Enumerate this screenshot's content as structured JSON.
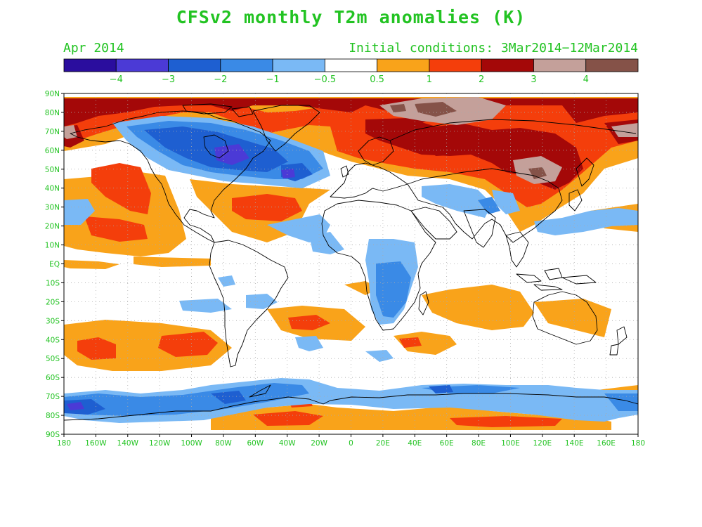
{
  "header": {
    "title": "CFSv2 monthly T2m anomalies (K)",
    "month": "Apr 2014",
    "initial_conditions": "Initial conditions: 3Mar2014−12Mar2014"
  },
  "colorbar": {
    "colors": [
      "#2a0d9e",
      "#4b3ad6",
      "#1e5fd1",
      "#3a8ae6",
      "#7ab9f5",
      "#ffffff",
      "#f9a31a",
      "#f43e0b",
      "#a40808",
      "#c4a09a",
      "#855248"
    ],
    "labels": [
      "−4",
      "−3",
      "−2",
      "−1",
      "−0.5",
      "0.5",
      "1",
      "2",
      "3",
      "4"
    ]
  },
  "map": {
    "lat_labels": [
      "90N",
      "80N",
      "70N",
      "60N",
      "50N",
      "40N",
      "30N",
      "20N",
      "10N",
      "EQ",
      "10S",
      "20S",
      "30S",
      "40S",
      "50S",
      "60S",
      "70S",
      "80S",
      "90S"
    ],
    "lon_labels": [
      "180",
      "160W",
      "140W",
      "120W",
      "100W",
      "80W",
      "60W",
      "40W",
      "20W",
      "0",
      "20E",
      "40E",
      "60E",
      "80E",
      "100E",
      "120E",
      "140E",
      "160E",
      "180"
    ],
    "label_color": "#22c322"
  }
}
